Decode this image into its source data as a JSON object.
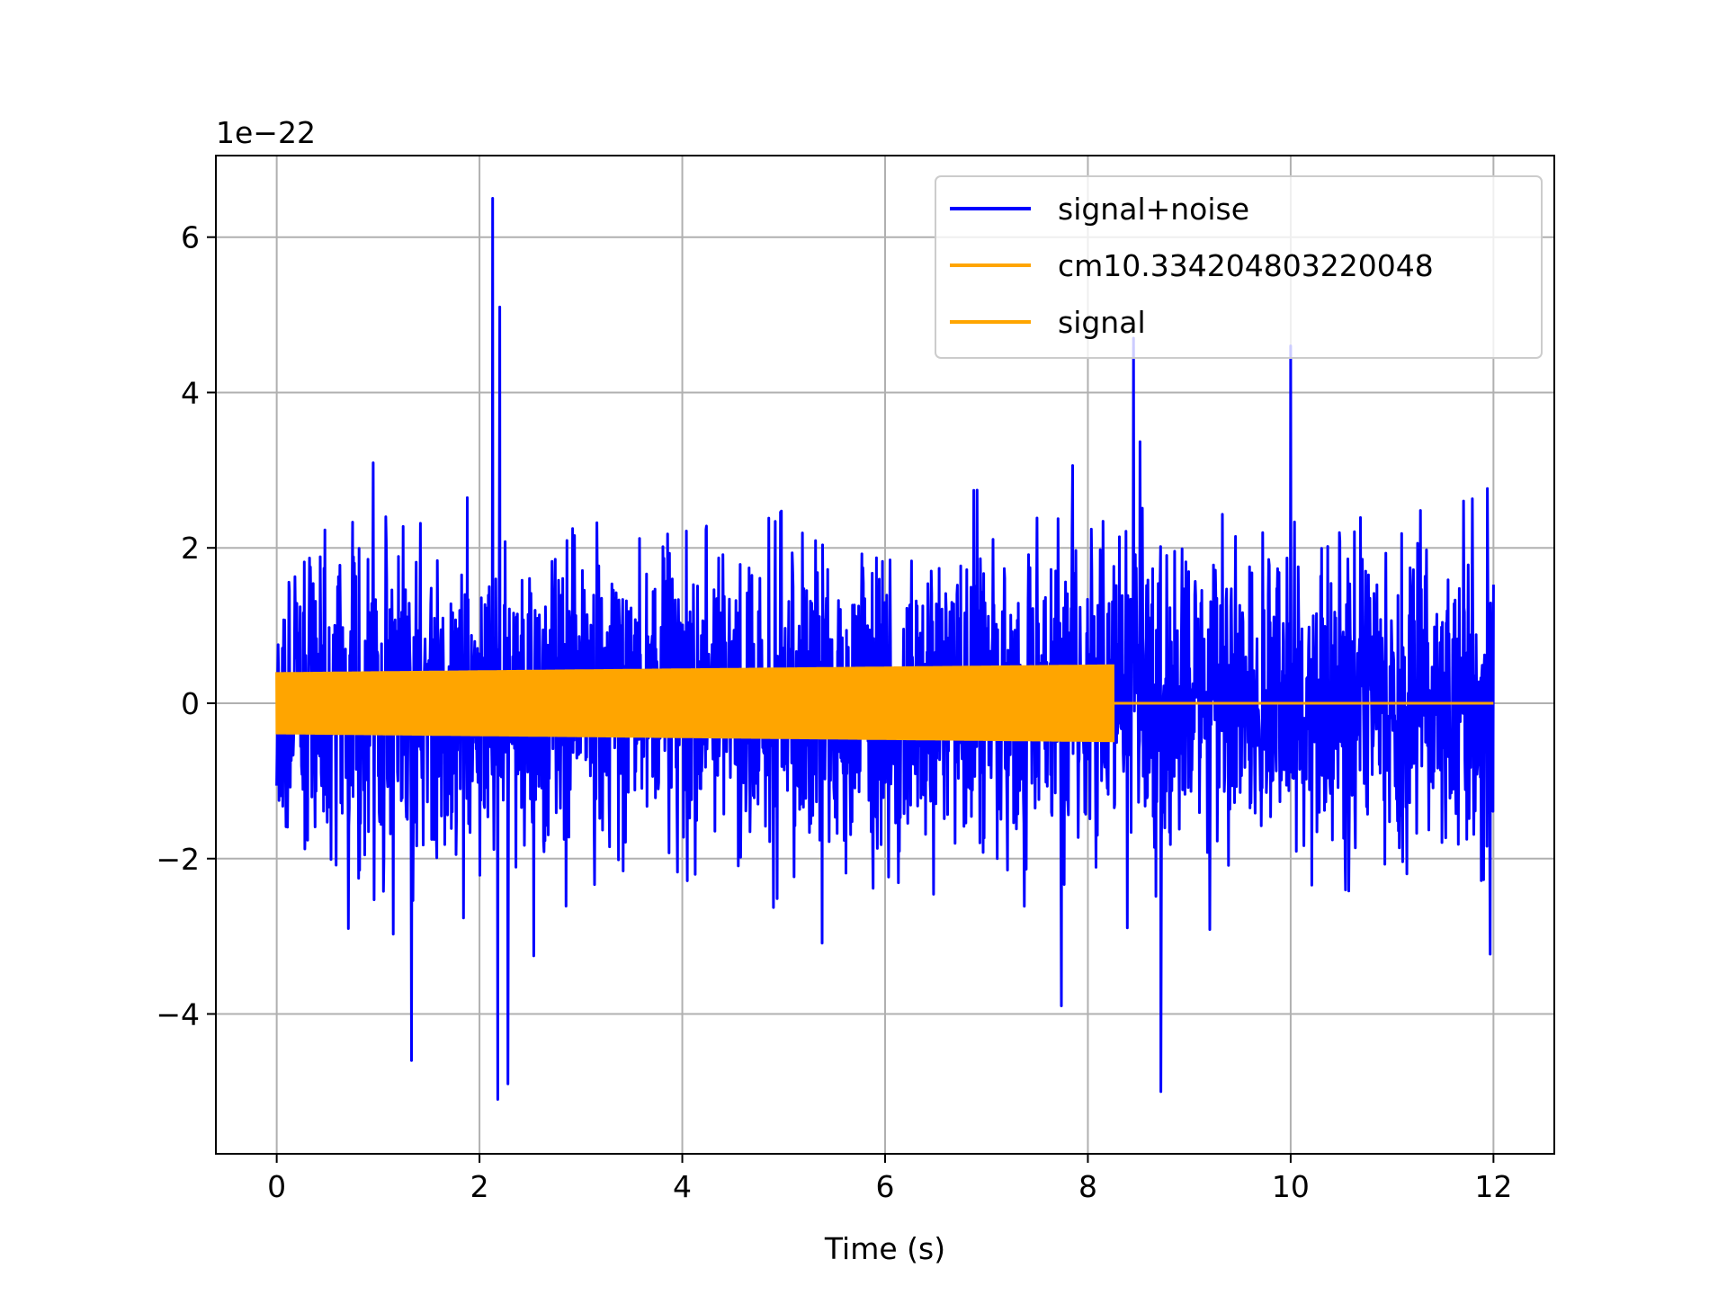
{
  "chart_data": {
    "type": "line",
    "title": "",
    "xlabel": "Time (s)",
    "ylabel": "",
    "y_offset_label": "1e−22",
    "xlim": [
      -0.6,
      12.6
    ],
    "ylim": [
      -5.8,
      7.05
    ],
    "x_ticks": [
      0,
      2,
      4,
      6,
      8,
      10,
      12
    ],
    "x_tick_labels": [
      "0",
      "2",
      "4",
      "6",
      "8",
      "10",
      "12"
    ],
    "y_ticks": [
      -4,
      -2,
      0,
      2,
      4,
      6
    ],
    "y_tick_labels": [
      "−4",
      "−2",
      "0",
      "2",
      "4",
      "6"
    ],
    "grid": true,
    "legend_position": "top-right",
    "series": [
      {
        "name": "signal+noise",
        "color": "#0000ff",
        "x_range": [
          0,
          12
        ],
        "typical_amplitude": 1.0,
        "peak_max": 6.5,
        "peak_min": -5.1,
        "notable_peaks": [
          {
            "x": 2.13,
            "y": 6.5
          },
          {
            "x": 2.2,
            "y": 5.1
          },
          {
            "x": 8.45,
            "y": 4.7
          },
          {
            "x": 10.0,
            "y": 4.6
          },
          {
            "x": 2.18,
            "y": -5.1
          },
          {
            "x": 2.28,
            "y": -4.9
          },
          {
            "x": 8.72,
            "y": -5.0
          }
        ]
      },
      {
        "name": "cm10.334204803220048",
        "color": "#ffa500",
        "x_range": [
          0,
          12
        ],
        "amplitude": 0.0,
        "value": 0.0
      },
      {
        "name": "signal",
        "color": "#ffa500",
        "x_range": [
          0,
          8.25
        ],
        "amplitude_start": 0.4,
        "amplitude_end": 0.5,
        "after_end_value": 0.0
      }
    ]
  }
}
